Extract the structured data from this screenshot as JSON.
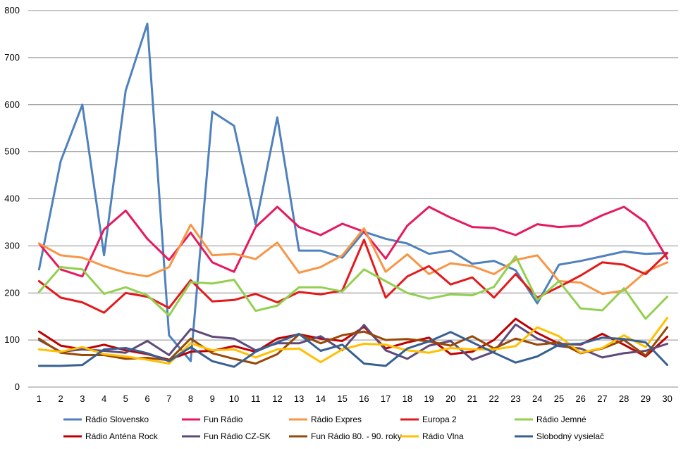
{
  "chart_data": {
    "type": "line",
    "title": "",
    "xlabel": "",
    "ylabel": "",
    "ylim": [
      0,
      800
    ],
    "y_ticks": [
      0,
      100,
      200,
      300,
      400,
      500,
      600,
      700,
      800
    ],
    "grid": true,
    "legend_position": "bottom",
    "x": [
      1,
      2,
      3,
      4,
      5,
      6,
      7,
      8,
      9,
      10,
      11,
      12,
      13,
      14,
      15,
      16,
      17,
      18,
      19,
      20,
      21,
      22,
      23,
      24,
      25,
      26,
      27,
      28,
      29,
      30
    ],
    "series": [
      {
        "name": "Rádio Slovensko",
        "color": "#4F81BD",
        "values": [
          250,
          480,
          600,
          280,
          630,
          772,
          110,
          55,
          585,
          555,
          345,
          573,
          290,
          290,
          275,
          330,
          315,
          305,
          283,
          290,
          262,
          268,
          248,
          178,
          260,
          268,
          278,
          288,
          283,
          285
        ]
      },
      {
        "name": "Fun Rádio",
        "color": "#E6195F",
        "values": [
          305,
          250,
          235,
          335,
          375,
          315,
          270,
          328,
          265,
          245,
          340,
          383,
          340,
          323,
          347,
          330,
          273,
          343,
          383,
          360,
          340,
          338,
          323,
          346,
          340,
          343,
          365,
          383,
          350,
          273
        ]
      },
      {
        "name": "Rádio Expres",
        "color": "#F79646",
        "values": [
          305,
          280,
          275,
          257,
          243,
          235,
          255,
          345,
          280,
          283,
          272,
          307,
          243,
          255,
          280,
          337,
          245,
          282,
          240,
          263,
          257,
          240,
          270,
          280,
          225,
          222,
          198,
          205,
          245,
          265
        ]
      },
      {
        "name": "Europa 2",
        "color": "#E31A1C",
        "values": [
          225,
          190,
          180,
          158,
          200,
          192,
          168,
          227,
          182,
          185,
          198,
          180,
          202,
          197,
          205,
          313,
          190,
          235,
          257,
          218,
          233,
          190,
          240,
          190,
          213,
          237,
          265,
          260,
          240,
          285
        ]
      },
      {
        "name": "Rádio Jemné",
        "color": "#92D050",
        "values": [
          202,
          255,
          250,
          198,
          212,
          195,
          152,
          223,
          220,
          228,
          162,
          173,
          212,
          212,
          203,
          250,
          225,
          200,
          188,
          197,
          195,
          213,
          278,
          185,
          225,
          167,
          163,
          210,
          145,
          192
        ]
      },
      {
        "name": "Rádio Anténa Rock",
        "color": "#C00000",
        "values": [
          118,
          88,
          80,
          90,
          78,
          70,
          58,
          75,
          77,
          87,
          75,
          103,
          112,
          103,
          98,
          128,
          82,
          95,
          105,
          70,
          75,
          100,
          145,
          115,
          92,
          90,
          113,
          90,
          65,
          107
        ]
      },
      {
        "name": "Fun Rádio CZ-SK",
        "color": "#5F497A",
        "values": [
          100,
          75,
          80,
          77,
          73,
          98,
          68,
          123,
          107,
          103,
          78,
          93,
          93,
          108,
          78,
          132,
          78,
          60,
          88,
          98,
          58,
          75,
          133,
          103,
          87,
          82,
          63,
          72,
          77,
          92
        ]
      },
      {
        "name": "Fun Rádio 80. - 90. roky",
        "color": "#984807",
        "values": [
          103,
          73,
          68,
          68,
          60,
          62,
          57,
          103,
          72,
          60,
          50,
          70,
          112,
          93,
          110,
          118,
          100,
          102,
          97,
          88,
          108,
          82,
          103,
          90,
          95,
          72,
          82,
          100,
          67,
          127
        ]
      },
      {
        "name": "Rádio Vlna",
        "color": "#FFC000",
        "values": [
          80,
          75,
          85,
          70,
          65,
          58,
          50,
          93,
          78,
          80,
          63,
          80,
          82,
          53,
          80,
          92,
          90,
          78,
          73,
          83,
          80,
          80,
          87,
          127,
          108,
          73,
          83,
          110,
          85,
          147
        ]
      },
      {
        "name": "Slobodný vysielač",
        "color": "#376092",
        "values": [
          45,
          45,
          47,
          80,
          83,
          72,
          55,
          85,
          55,
          43,
          75,
          95,
          113,
          77,
          90,
          50,
          45,
          82,
          97,
          117,
          95,
          73,
          52,
          65,
          90,
          92,
          105,
          102,
          95,
          47
        ]
      }
    ]
  }
}
